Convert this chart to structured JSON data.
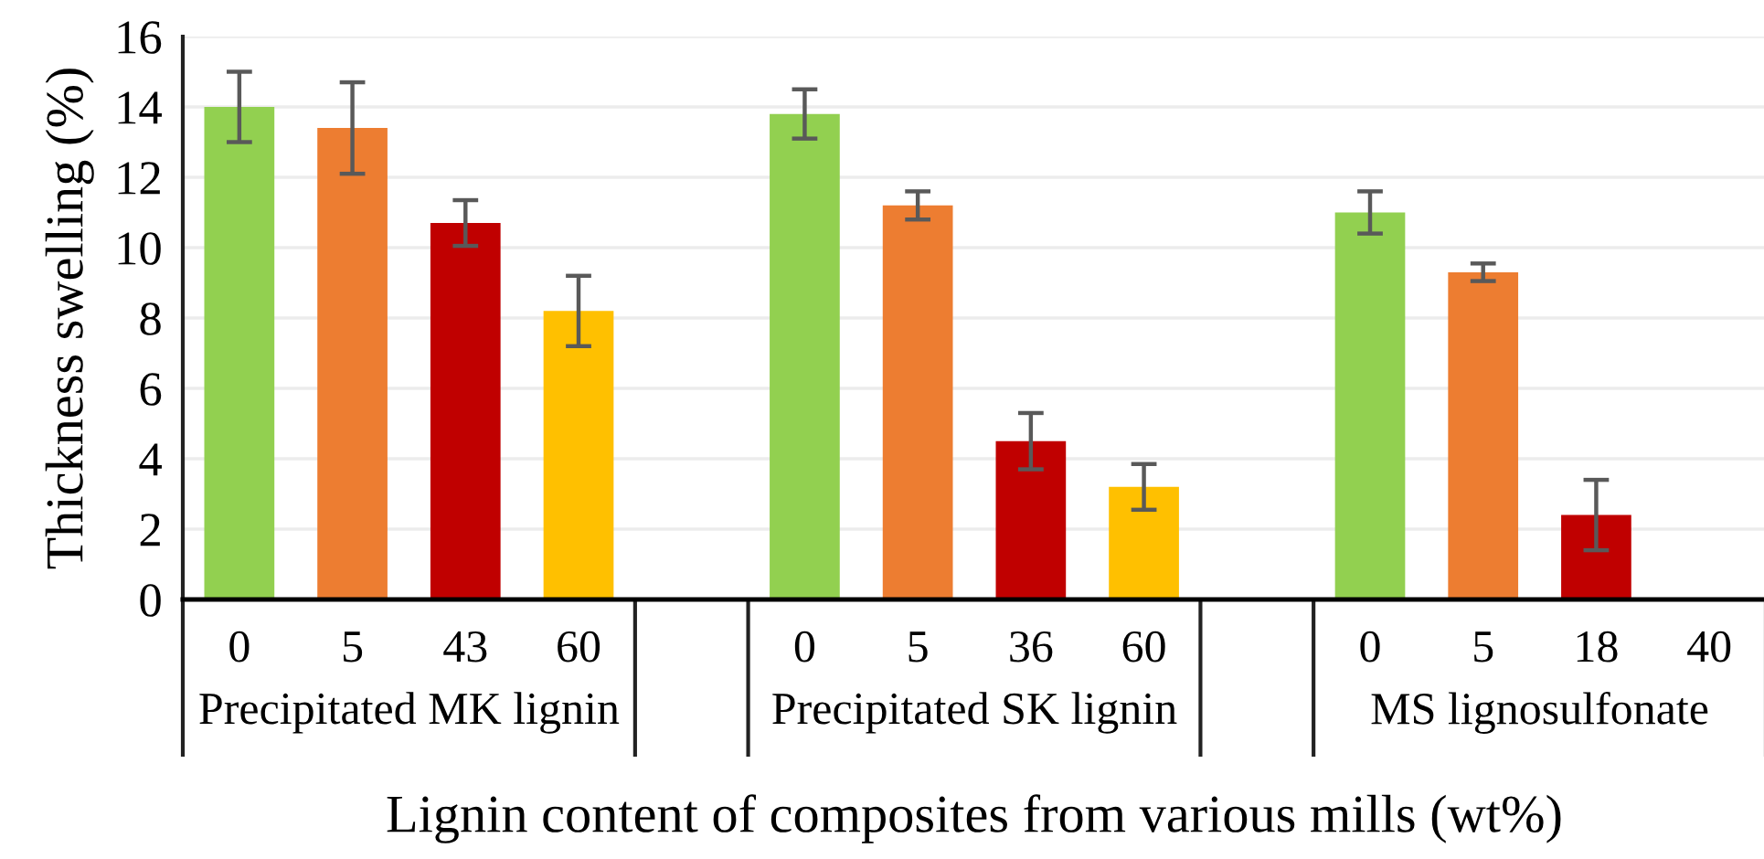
{
  "chart_data": {
    "type": "bar",
    "xlabel": "Lignin content of composites from various mills (wt%)",
    "ylabel": "Thickness swelling (%)",
    "categories": [
      "0",
      "5",
      "43",
      "60",
      null,
      "0",
      "5",
      "36",
      "60",
      null,
      "0",
      "5",
      "18",
      "40"
    ],
    "values": [
      14.0,
      13.4,
      10.7,
      8.2,
      null,
      13.8,
      11.2,
      4.5,
      3.2,
      null,
      11.0,
      9.3,
      2.4,
      null
    ],
    "errors": [
      1.0,
      1.3,
      0.65,
      1.0,
      null,
      0.7,
      0.4,
      0.8,
      0.65,
      null,
      0.6,
      0.25,
      1.0,
      null
    ],
    "colors": [
      "#92d050",
      "#ed7d31",
      "#c00000",
      "#ffc000",
      null,
      "#92d050",
      "#ed7d31",
      "#c00000",
      "#ffc000",
      null,
      "#92d050",
      "#ed7d31",
      "#c00000",
      null
    ],
    "annotations": [
      "Precipitated MK lignin",
      "Precipitated SK lignin",
      "MS lignosulfonate"
    ],
    "ylim": [
      0,
      16
    ],
    "yticks": [
      0,
      2,
      4,
      6,
      8,
      10,
      12,
      14,
      16
    ],
    "grid": "y"
  }
}
